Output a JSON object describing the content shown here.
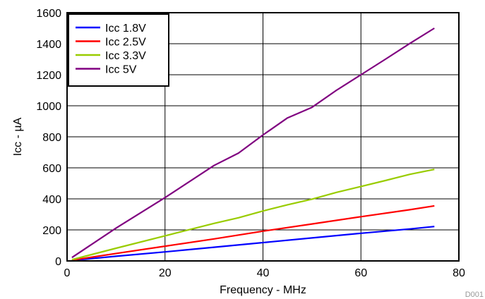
{
  "chart_data": {
    "type": "line",
    "title": "",
    "xlabel": "Frequency - MHz",
    "ylabel": "Icc - µA",
    "xlim": [
      0,
      80
    ],
    "ylim": [
      0,
      1600
    ],
    "xticks": [
      0,
      20,
      40,
      60,
      80
    ],
    "yticks": [
      0,
      200,
      400,
      600,
      800,
      1000,
      1200,
      1400,
      1600
    ],
    "grid": true,
    "legend_position": "top-left",
    "figure_id": "D001",
    "series": [
      {
        "name": "Icc 1.8V",
        "color": "#0000ff",
        "points": [
          [
            1,
            3
          ],
          [
            10,
            30
          ],
          [
            20,
            58
          ],
          [
            30,
            88
          ],
          [
            40,
            118
          ],
          [
            50,
            148
          ],
          [
            60,
            178
          ],
          [
            70,
            206
          ],
          [
            75,
            222
          ]
        ]
      },
      {
        "name": "Icc 2.5V",
        "color": "#ff0000",
        "points": [
          [
            1,
            5
          ],
          [
            10,
            48
          ],
          [
            20,
            95
          ],
          [
            30,
            142
          ],
          [
            40,
            192
          ],
          [
            50,
            238
          ],
          [
            60,
            285
          ],
          [
            70,
            330
          ],
          [
            75,
            355
          ]
        ]
      },
      {
        "name": "Icc 3.3V",
        "color": "#99cc00",
        "points": [
          [
            1,
            8
          ],
          [
            10,
            82
          ],
          [
            20,
            162
          ],
          [
            30,
            242
          ],
          [
            35,
            278
          ],
          [
            40,
            322
          ],
          [
            45,
            362
          ],
          [
            50,
            398
          ],
          [
            55,
            442
          ],
          [
            60,
            480
          ],
          [
            65,
            518
          ],
          [
            70,
            558
          ],
          [
            75,
            590
          ]
        ]
      },
      {
        "name": "Icc 5V",
        "color": "#800080",
        "points": [
          [
            1,
            22
          ],
          [
            10,
            212
          ],
          [
            20,
            408
          ],
          [
            30,
            615
          ],
          [
            35,
            695
          ],
          [
            40,
            812
          ],
          [
            45,
            922
          ],
          [
            50,
            990
          ],
          [
            55,
            1100
          ],
          [
            60,
            1200
          ],
          [
            65,
            1300
          ],
          [
            70,
            1402
          ],
          [
            75,
            1500
          ]
        ]
      }
    ]
  }
}
